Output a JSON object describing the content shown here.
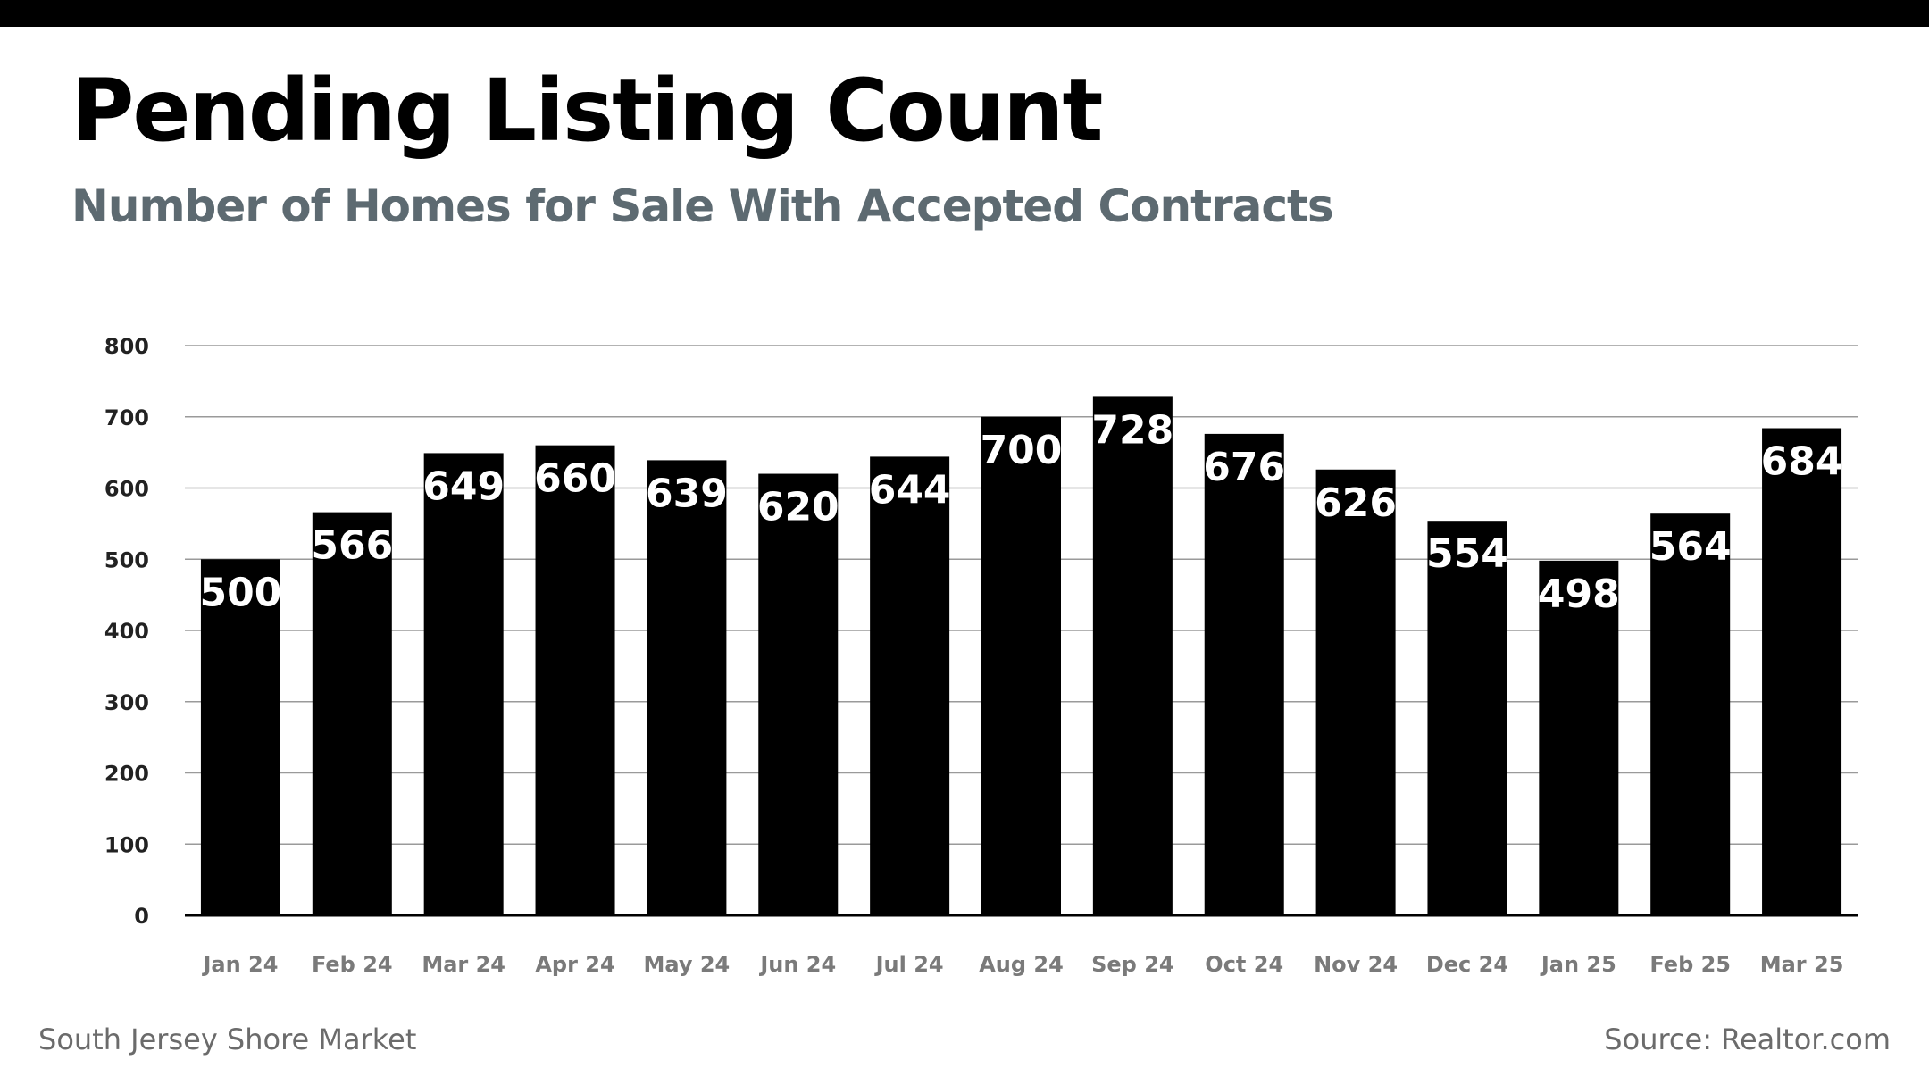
{
  "header": {
    "title": "Pending Listing Count",
    "subtitle": "Number of Homes for Sale With Accepted Contracts"
  },
  "footer": {
    "market": "South Jersey Shore Market",
    "source": "Source: Realtor.com"
  },
  "colors": {
    "bar": "#000000",
    "bar_label": "#ffffff",
    "grid": "#9a9a9a",
    "tick_label": "#222222",
    "x_label": "#7a7a7a",
    "subtitle": "#5d6a71"
  },
  "chart_data": {
    "type": "bar",
    "title": "Pending Listing Count",
    "subtitle": "Number of Homes for Sale With Accepted Contracts",
    "xlabel": "",
    "ylabel": "",
    "categories": [
      "Jan 24",
      "Feb 24",
      "Mar 24",
      "Apr 24",
      "May 24",
      "Jun 24",
      "Jul 24",
      "Aug 24",
      "Sep 24",
      "Oct 24",
      "Nov 24",
      "Dec 24",
      "Jan 25",
      "Feb 25",
      "Mar 25"
    ],
    "values": [
      500,
      566,
      649,
      660,
      639,
      620,
      644,
      700,
      728,
      676,
      626,
      554,
      498,
      564,
      684
    ],
    "ylim": [
      0,
      800
    ],
    "yticks": [
      0,
      100,
      200,
      300,
      400,
      500,
      600,
      700,
      800
    ],
    "grid": true,
    "data_labels": true,
    "legend": "none"
  }
}
